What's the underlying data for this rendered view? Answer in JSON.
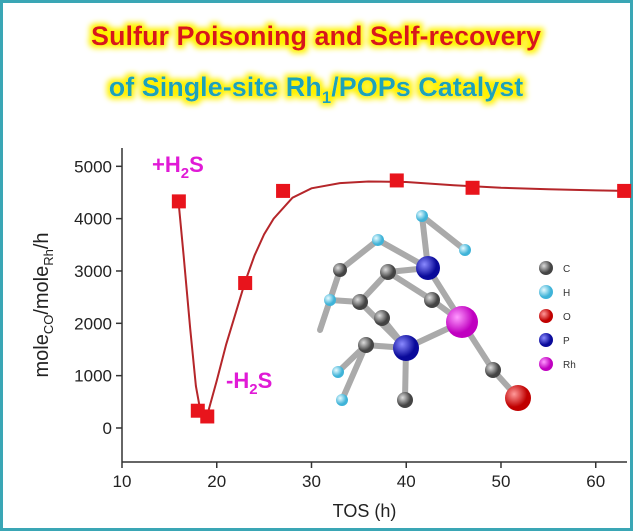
{
  "chart_data": {
    "type": "scatter",
    "title": [
      "Sulfur Poisoning and Self-recovery"
    ],
    "subtitle": [
      "of Single-site Rh",
      "1",
      "/POPs Catalyst"
    ],
    "x_label": "TOS (h)",
    "y_label": [
      "mole",
      "CO",
      "/mole",
      "Rh",
      "/h"
    ],
    "annotations": [
      [
        "+H",
        "2",
        "S"
      ],
      [
        "-H",
        "2",
        "S"
      ]
    ],
    "atom_legend": [
      "C",
      "H",
      "O",
      "P",
      "Rh"
    ],
    "x": [
      16,
      18,
      19,
      23,
      27,
      39,
      47,
      63
    ],
    "series": [
      {
        "color": "#e8141c",
        "values": [
          4330,
          330,
          220,
          2770,
          4530,
          4730,
          4590,
          4530
        ]
      }
    ],
    "curve": {
      "color": "#b5262a",
      "x": [
        15.9,
        16.5,
        17.2,
        17.8,
        18.4,
        19,
        20,
        21,
        22,
        23,
        24,
        25,
        26,
        28,
        30,
        33,
        36,
        40,
        45,
        50,
        55,
        60,
        63
      ],
      "values": [
        4450,
        3300,
        1900,
        800,
        200,
        250,
        900,
        1600,
        2200,
        2800,
        3300,
        3700,
        4000,
        4400,
        4580,
        4680,
        4710,
        4700,
        4640,
        4590,
        4560,
        4540,
        4530
      ]
    },
    "xlim": [
      10,
      63.3
    ],
    "xticks": [
      10,
      20,
      30,
      40,
      50,
      60
    ],
    "ylim": [
      -650,
      5350
    ],
    "yticks": [
      0,
      1000,
      2000,
      3000,
      4000,
      5000
    ]
  }
}
